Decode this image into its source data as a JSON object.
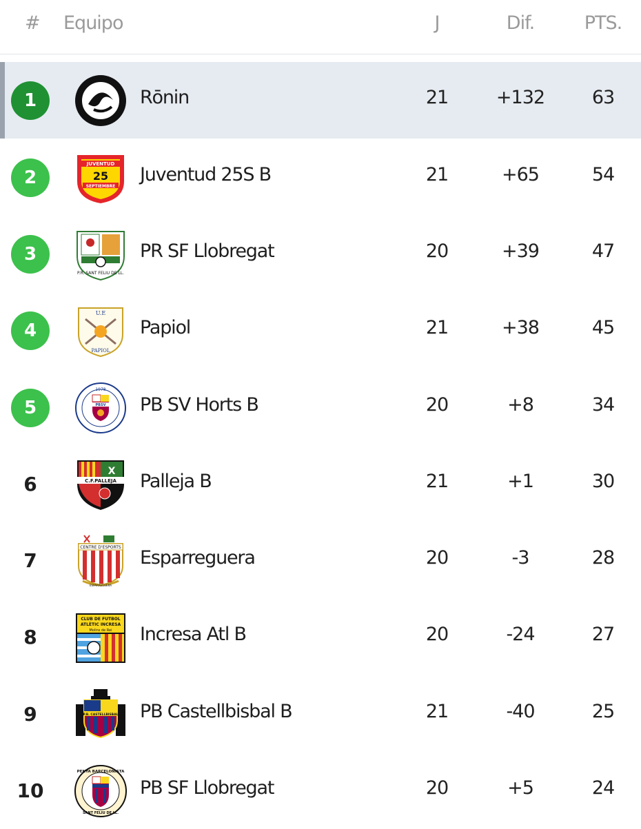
{
  "header": {
    "pos": "#",
    "team": "Equipo",
    "played": "J",
    "diff": "Dif.",
    "points": "PTS."
  },
  "colors": {
    "champion": "#1f9133",
    "promotion": "#3cc14c",
    "active_row": "#e6ebf1"
  },
  "rows": [
    {
      "pos": "1",
      "team": "Rōnin",
      "played": "21",
      "diff": "+132",
      "points": "63",
      "badge": "champion",
      "crest": "ronin-crest-icon"
    },
    {
      "pos": "2",
      "team": "Juventud 25S B",
      "played": "21",
      "diff": "+65",
      "points": "54",
      "badge": "promotion",
      "crest": "juventud-crest-icon",
      "crest_text": [
        "JUVENTUD",
        "25",
        "SEPTIEMBRE"
      ]
    },
    {
      "pos": "3",
      "team": "PR SF Llobregat",
      "played": "20",
      "diff": "+39",
      "points": "47",
      "badge": "promotion",
      "crest": "pr-sf-llobregat-crest-icon",
      "crest_text": [
        "P.R. SANT FELIU DE LL."
      ]
    },
    {
      "pos": "4",
      "team": "Papiol",
      "played": "21",
      "diff": "+38",
      "points": "45",
      "badge": "promotion",
      "crest": "papiol-crest-icon",
      "crest_text": [
        "U.E",
        "PAPIOL"
      ]
    },
    {
      "pos": "5",
      "team": "PB SV Horts B",
      "played": "20",
      "diff": "+8",
      "points": "34",
      "badge": "promotion",
      "crest": "pb-sv-horts-crest-icon",
      "crest_text": [
        "1978",
        "PBSV"
      ]
    },
    {
      "pos": "6",
      "team": "Palleja B",
      "played": "21",
      "diff": "+1",
      "points": "30",
      "badge": "none",
      "crest": "palleja-crest-icon",
      "crest_text": [
        "X",
        "C.F.PALLEJA"
      ]
    },
    {
      "pos": "7",
      "team": "Esparreguera",
      "played": "20",
      "diff": "-3",
      "points": "28",
      "badge": "none",
      "crest": "esparreguera-crest-icon",
      "crest_text": [
        "CENTRE D'ESPORTS",
        "ESPARREGUERA"
      ]
    },
    {
      "pos": "8",
      "team": "Incresa Atl B",
      "played": "20",
      "diff": "-24",
      "points": "27",
      "badge": "none",
      "crest": "incresa-crest-icon",
      "crest_text": [
        "CLUB DE FUTBOL",
        "ATLÈTIC INCRESA",
        "Molins de Rei"
      ]
    },
    {
      "pos": "9",
      "team": "PB Castellbisbal B",
      "played": "21",
      "diff": "-40",
      "points": "25",
      "badge": "none",
      "crest": "castellbisbal-crest-icon",
      "crest_text": [
        "P.B. CASTELLBISBAL"
      ]
    },
    {
      "pos": "10",
      "team": "PB SF Llobregat",
      "played": "20",
      "diff": "+5",
      "points": "24",
      "badge": "none",
      "crest": "pb-sf-llobregat-crest-icon",
      "crest_text": [
        "PENYA BARCELONISTA",
        "SANT FELIU DE LL."
      ]
    }
  ]
}
